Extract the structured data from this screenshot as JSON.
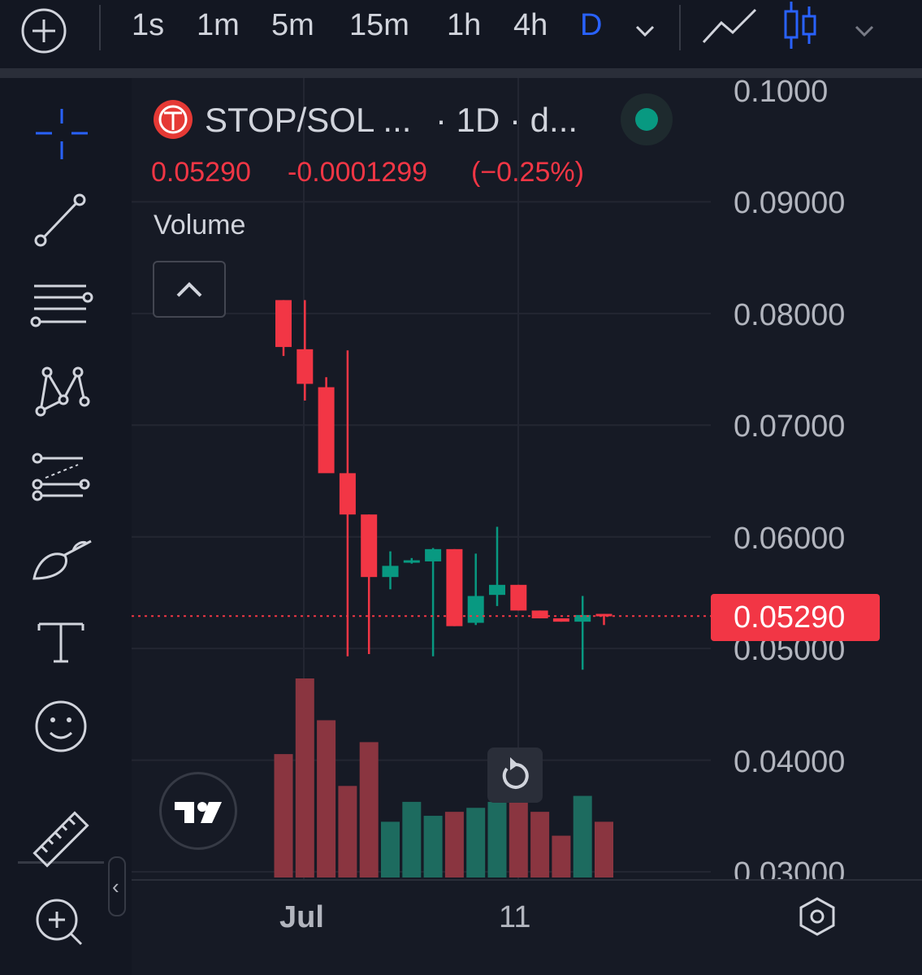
{
  "topbar": {
    "timeframes": [
      "1s",
      "1m",
      "5m",
      "15m",
      "1h",
      "4h",
      "D"
    ],
    "active_timeframe": "D"
  },
  "legend": {
    "symbol": "STOP/SOL ...",
    "interval": "· 1D · d...",
    "last": "0.05290",
    "change": "-0.0001299",
    "change_pct": "(−0.25%)",
    "volume_label": "Volume"
  },
  "price_axis": {
    "ticks": [
      "0.1000",
      "0.09000",
      "0.08000",
      "0.07000",
      "0.06000",
      "0.05000",
      "0.04000",
      "0.03000"
    ],
    "current_price": "0.05290"
  },
  "time_axis": {
    "labels": [
      "Jul",
      "11"
    ]
  },
  "colors": {
    "up": "#089981",
    "down": "#f23645",
    "accent": "#2962ff",
    "background": "#131722"
  },
  "chart_data": {
    "type": "candlestick",
    "price_range": [
      0.03,
      0.1
    ],
    "current_price": 0.0529,
    "candles": [
      {
        "o": 0.0812,
        "h": 0.0812,
        "l": 0.0762,
        "c": 0.077
      },
      {
        "o": 0.0768,
        "h": 0.0812,
        "l": 0.0722,
        "c": 0.0737
      },
      {
        "o": 0.0734,
        "h": 0.0743,
        "l": 0.0658,
        "c": 0.0657
      },
      {
        "o": 0.0657,
        "h": 0.0767,
        "l": 0.0493,
        "c": 0.062
      },
      {
        "o": 0.062,
        "h": 0.062,
        "l": 0.0495,
        "c": 0.0564
      },
      {
        "o": 0.0564,
        "h": 0.0587,
        "l": 0.0553,
        "c": 0.0574
      },
      {
        "o": 0.0578,
        "h": 0.0581,
        "l": 0.0576,
        "c": 0.0579
      },
      {
        "o": 0.0578,
        "h": 0.059,
        "l": 0.0493,
        "c": 0.0589
      },
      {
        "o": 0.0589,
        "h": 0.0589,
        "l": 0.052,
        "c": 0.052
      },
      {
        "o": 0.0523,
        "h": 0.0585,
        "l": 0.0521,
        "c": 0.0547
      },
      {
        "o": 0.0548,
        "h": 0.0609,
        "l": 0.0538,
        "c": 0.0557
      },
      {
        "o": 0.0557,
        "h": 0.0557,
        "l": 0.0534,
        "c": 0.0534
      },
      {
        "o": 0.0534,
        "h": 0.0534,
        "l": 0.0527,
        "c": 0.0527
      },
      {
        "o": 0.0527,
        "h": 0.0527,
        "l": 0.0524,
        "c": 0.0524
      },
      {
        "o": 0.0524,
        "h": 0.0547,
        "l": 0.0481,
        "c": 0.053
      },
      {
        "o": 0.0531,
        "h": 0.0531,
        "l": 0.0521,
        "c": 0.0529
      }
    ],
    "volume": [
      {
        "v": 0.62,
        "up": false
      },
      {
        "v": 1.0,
        "up": false
      },
      {
        "v": 0.79,
        "up": false
      },
      {
        "v": 0.46,
        "up": false
      },
      {
        "v": 0.68,
        "up": false
      },
      {
        "v": 0.28,
        "up": true
      },
      {
        "v": 0.38,
        "up": true
      },
      {
        "v": 0.31,
        "up": true
      },
      {
        "v": 0.33,
        "up": false
      },
      {
        "v": 0.35,
        "up": true
      },
      {
        "v": 0.38,
        "up": true
      },
      {
        "v": 0.38,
        "up": false
      },
      {
        "v": 0.33,
        "up": false
      },
      {
        "v": 0.21,
        "up": false
      },
      {
        "v": 0.41,
        "up": true
      },
      {
        "v": 0.28,
        "up": false
      }
    ]
  }
}
